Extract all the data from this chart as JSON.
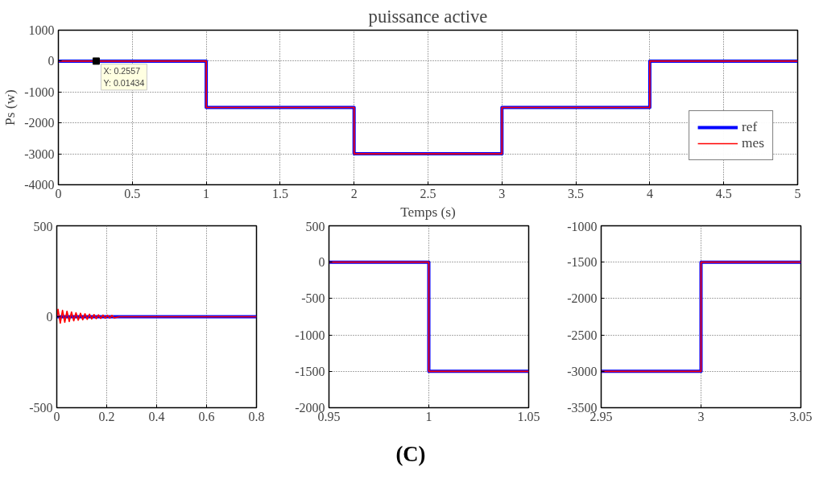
{
  "chart_data": [
    {
      "type": "line",
      "title": "puissance active",
      "xlabel": "Temps (s)",
      "ylabel": "Ps (w)",
      "xlim": [
        0,
        5
      ],
      "ylim": [
        -4000,
        1000
      ],
      "xticks": [
        0,
        0.5,
        1,
        1.5,
        2,
        2.5,
        3,
        3.5,
        4,
        4.5,
        5
      ],
      "yticks": [
        -4000,
        -3000,
        -2000,
        -1000,
        0,
        1000
      ],
      "grid": true,
      "legend": "bottom right",
      "series": [
        {
          "name": "ref",
          "color": "#0000ff",
          "x": [
            0,
            1,
            1,
            2,
            2,
            3,
            3,
            4,
            4,
            5
          ],
          "values": [
            0,
            0,
            -1500,
            -1500,
            -3000,
            -3000,
            -1500,
            -1500,
            0,
            0
          ]
        },
        {
          "name": "mes",
          "color": "#ff0000",
          "x": [
            0,
            1,
            1,
            2,
            2,
            3,
            3,
            4,
            4,
            5
          ],
          "values": [
            0,
            0,
            -1500,
            -1500,
            -3000,
            -3000,
            -1500,
            -1500,
            0,
            0
          ]
        }
      ],
      "annotations": [
        {
          "text": "X: 0.2557\nY: 0.01434",
          "x": 0.2557,
          "y": 0.01434
        },
        "(C)"
      ]
    },
    {
      "type": "line",
      "xlim": [
        0,
        0.8
      ],
      "ylim": [
        -500,
        500
      ],
      "xticks": [
        0,
        0.2,
        0.4,
        0.6,
        0.8
      ],
      "yticks": [
        -500,
        0,
        500
      ],
      "grid": true,
      "series": [
        {
          "color": "#0000ff",
          "x": [
            0,
            0.8
          ],
          "values": [
            0,
            0
          ]
        },
        {
          "color": "#ff0000",
          "x": [
            0,
            0.005,
            0.014,
            0.023,
            0.032,
            0.041,
            0.05,
            0.059,
            0.068,
            0.077,
            0.086,
            0.095,
            0.104,
            0.113,
            0.122,
            0.131,
            0.14,
            0.149,
            0.158,
            0.167,
            0.176,
            0.185,
            0.194,
            0.203,
            0.212,
            0.221,
            0.23,
            0.25,
            0.4,
            0.8
          ],
          "values": [
            0,
            40,
            -35,
            35,
            -30,
            30,
            -26,
            26,
            -22,
            22,
            -19,
            19,
            -16,
            16,
            -14,
            14,
            -12,
            12,
            -10,
            10,
            -9,
            9,
            -8,
            8,
            -7,
            7,
            -6,
            0,
            0,
            0
          ]
        }
      ]
    },
    {
      "type": "line",
      "xlim": [
        0.95,
        1.05
      ],
      "ylim": [
        -2000,
        500
      ],
      "xticks": [
        0.95,
        1,
        1.05
      ],
      "yticks": [
        -2000,
        -1500,
        -1000,
        -500,
        0,
        500
      ],
      "grid": true,
      "series": [
        {
          "color": "#0000ff",
          "x": [
            0.95,
            1,
            1,
            1.05
          ],
          "values": [
            0,
            0,
            -1500,
            -1500
          ]
        },
        {
          "color": "#ff0000",
          "x": [
            0.95,
            1,
            1,
            1.05
          ],
          "values": [
            0,
            0,
            -1500,
            -1500
          ]
        }
      ]
    },
    {
      "type": "line",
      "xlim": [
        2.95,
        3.05
      ],
      "ylim": [
        -3500,
        -1000
      ],
      "xticks": [
        2.95,
        3,
        3.05
      ],
      "yticks": [
        -3500,
        -3000,
        -2500,
        -2000,
        -1500,
        -1000
      ],
      "grid": true,
      "series": [
        {
          "color": "#0000ff",
          "x": [
            2.95,
            3,
            3,
            3.05
          ],
          "values": [
            -3000,
            -3000,
            -1500,
            -1500
          ]
        },
        {
          "color": "#ff0000",
          "x": [
            2.95,
            3,
            3,
            3.05
          ],
          "values": [
            -3000,
            -3000,
            -1500,
            -1500
          ]
        }
      ]
    }
  ]
}
